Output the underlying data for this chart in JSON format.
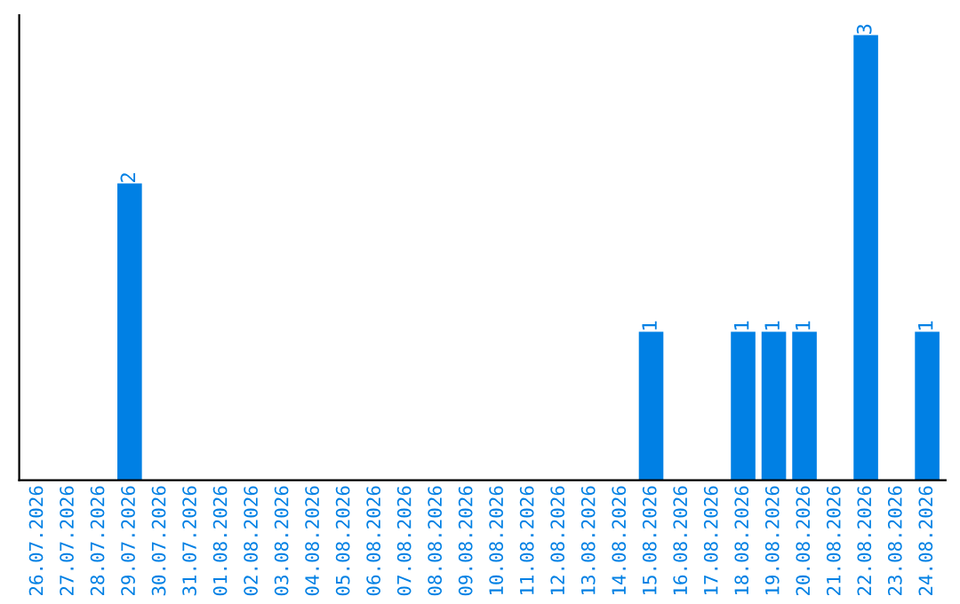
{
  "chart_data": {
    "type": "bar",
    "categories": [
      "26.07.2026",
      "27.07.2026",
      "28.07.2026",
      "29.07.2026",
      "30.07.2026",
      "31.07.2026",
      "01.08.2026",
      "02.08.2026",
      "03.08.2026",
      "04.08.2026",
      "05.08.2026",
      "06.08.2026",
      "07.08.2026",
      "08.08.2026",
      "09.08.2026",
      "10.08.2026",
      "11.08.2026",
      "12.08.2026",
      "13.08.2026",
      "14.08.2026",
      "15.08.2026",
      "16.08.2026",
      "17.08.2026",
      "18.08.2026",
      "19.08.2026",
      "20.08.2026",
      "21.08.2026",
      "22.08.2026",
      "23.08.2026",
      "24.08.2026"
    ],
    "values": [
      0,
      0,
      0,
      2,
      0,
      0,
      0,
      0,
      0,
      0,
      0,
      0,
      0,
      0,
      0,
      0,
      0,
      0,
      0,
      0,
      1,
      0,
      0,
      1,
      1,
      1,
      0,
      3,
      0,
      1
    ],
    "value_labels": [
      null,
      null,
      null,
      "2",
      null,
      null,
      null,
      null,
      null,
      null,
      null,
      null,
      null,
      null,
      null,
      null,
      null,
      null,
      null,
      null,
      "1",
      null,
      null,
      "1",
      "1",
      "1",
      null,
      "3",
      null,
      "1"
    ],
    "color": "#0080e4",
    "tick_labels": "x",
    "grid": false,
    "legend": false
  }
}
